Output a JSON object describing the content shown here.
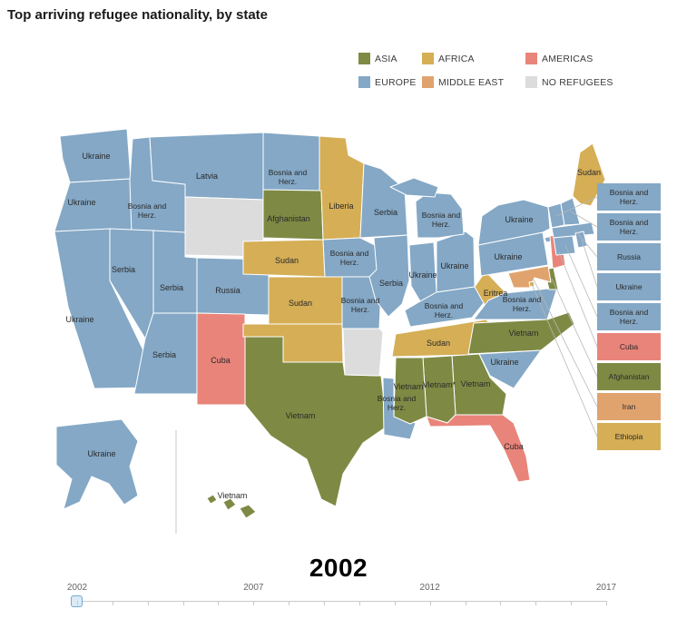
{
  "title": "Top arriving refugee nationality, by state",
  "year_display": "2002",
  "colors": {
    "ASIA": "#7e8a44",
    "AFRICA": "#d5ae56",
    "AMERICAS": "#e9847a",
    "EUROPE": "#84a8c6",
    "MIDDLE EAST": "#e0a36e",
    "NO REFUGEES": "#dcdcdc"
  },
  "legend": {
    "items": [
      {
        "label": "ASIA",
        "region": "ASIA"
      },
      {
        "label": "AFRICA",
        "region": "AFRICA"
      },
      {
        "label": "AMERICAS",
        "region": "AMERICAS"
      },
      {
        "label": "EUROPE",
        "region": "EUROPE"
      },
      {
        "label": "MIDDLE EAST",
        "region": "MIDDLE EAST"
      },
      {
        "label": "NO REFUGEES",
        "region": "NO REFUGEES"
      }
    ]
  },
  "timeline": {
    "start": 2002,
    "end": 2017,
    "current": 2002,
    "tick_labels": [
      "2002",
      "2007",
      "2012",
      "2017"
    ]
  },
  "chart_data": {
    "type": "choropleth",
    "title": "Top arriving refugee nationality, by state",
    "year": "2002",
    "legend_categories": [
      "ASIA",
      "AFRICA",
      "AMERICAS",
      "EUROPE",
      "MIDDLE EAST",
      "NO REFUGEES"
    ],
    "callouts": [
      "VT",
      "NH",
      "MA",
      "RI",
      "CT",
      "NJ",
      "DE",
      "MD",
      "DC"
    ],
    "states": [
      {
        "state": "WA",
        "label": "Ukraine",
        "region": "EUROPE"
      },
      {
        "state": "OR",
        "label": "Ukraine",
        "region": "EUROPE"
      },
      {
        "state": "CA",
        "label": "Ukraine",
        "region": "EUROPE"
      },
      {
        "state": "ID",
        "label": "Bosnia and Herz.",
        "region": "EUROPE"
      },
      {
        "state": "MT",
        "label": "Latvia",
        "region": "EUROPE"
      },
      {
        "state": "WY",
        "label": "",
        "region": "NO REFUGEES"
      },
      {
        "state": "NV",
        "label": "Serbia",
        "region": "EUROPE"
      },
      {
        "state": "UT",
        "label": "Serbia",
        "region": "EUROPE"
      },
      {
        "state": "AZ",
        "label": "Serbia",
        "region": "EUROPE"
      },
      {
        "state": "CO",
        "label": "Russia",
        "region": "EUROPE"
      },
      {
        "state": "NM",
        "label": "Cuba",
        "region": "AMERICAS"
      },
      {
        "state": "ND",
        "label": "Bosnia and Herz.",
        "region": "EUROPE"
      },
      {
        "state": "SD",
        "label": "Afghanistan",
        "region": "ASIA"
      },
      {
        "state": "NE",
        "label": "Sudan",
        "region": "AFRICA"
      },
      {
        "state": "KS",
        "label": "Sudan",
        "region": "AFRICA"
      },
      {
        "state": "OK",
        "label": "",
        "region": "AFRICA"
      },
      {
        "state": "TX",
        "label": "Vietnam",
        "region": "ASIA"
      },
      {
        "state": "MN",
        "label": "Liberia",
        "region": "AFRICA"
      },
      {
        "state": "IA",
        "label": "Bosnia and Herz.",
        "region": "EUROPE"
      },
      {
        "state": "MO",
        "label": "Bosnia and Herz.",
        "region": "EUROPE"
      },
      {
        "state": "AR",
        "label": "",
        "region": "NO REFUGEES"
      },
      {
        "state": "LA",
        "label": "Bosnia and Herz.",
        "region": "EUROPE"
      },
      {
        "state": "WI",
        "label": "Serbia",
        "region": "EUROPE"
      },
      {
        "state": "IL",
        "label": "Serbia",
        "region": "EUROPE"
      },
      {
        "state": "IN",
        "label": "Ukraine",
        "region": "EUROPE"
      },
      {
        "state": "OH",
        "label": "Ukraine",
        "region": "EUROPE"
      },
      {
        "state": "MI",
        "label": "Bosnia and Herz.",
        "region": "EUROPE"
      },
      {
        "state": "KY",
        "label": "Bosnia and Herz.",
        "region": "EUROPE"
      },
      {
        "state": "TN",
        "label": "Sudan",
        "region": "AFRICA"
      },
      {
        "state": "MS",
        "label": "Vietnam",
        "region": "ASIA"
      },
      {
        "state": "AL",
        "label": "Vietnam*",
        "region": "ASIA"
      },
      {
        "state": "GA",
        "label": "Vietnam",
        "region": "ASIA"
      },
      {
        "state": "FL",
        "label": "Cuba",
        "region": "AMERICAS"
      },
      {
        "state": "SC",
        "label": "Ukraine",
        "region": "EUROPE"
      },
      {
        "state": "NC",
        "label": "Vietnam",
        "region": "ASIA"
      },
      {
        "state": "VA",
        "label": "Bosnia and Herz.",
        "region": "EUROPE"
      },
      {
        "state": "WV",
        "label": "Eritrea",
        "region": "AFRICA"
      },
      {
        "state": "PA",
        "label": "Ukraine",
        "region": "EUROPE"
      },
      {
        "state": "NY",
        "label": "Ukraine",
        "region": "EUROPE"
      },
      {
        "state": "ME",
        "label": "Sudan",
        "region": "AFRICA"
      },
      {
        "state": "VT",
        "label": "Bosnia and Herz.",
        "region": "EUROPE"
      },
      {
        "state": "NH",
        "label": "Bosnia and Herz.",
        "region": "EUROPE"
      },
      {
        "state": "MA",
        "label": "Russia",
        "region": "EUROPE"
      },
      {
        "state": "RI",
        "label": "Ukraine",
        "region": "EUROPE"
      },
      {
        "state": "CT",
        "label": "Bosnia and Herz.",
        "region": "EUROPE"
      },
      {
        "state": "NJ",
        "label": "Cuba",
        "region": "AMERICAS"
      },
      {
        "state": "DE",
        "label": "Afghanistan",
        "region": "ASIA"
      },
      {
        "state": "MD",
        "label": "Iran",
        "region": "MIDDLE EAST"
      },
      {
        "state": "DC",
        "label": "Ethiopia",
        "region": "AFRICA"
      },
      {
        "state": "AK",
        "label": "Ukraine",
        "region": "EUROPE"
      },
      {
        "state": "HI",
        "label": "Vietnam",
        "region": "ASIA"
      }
    ]
  }
}
